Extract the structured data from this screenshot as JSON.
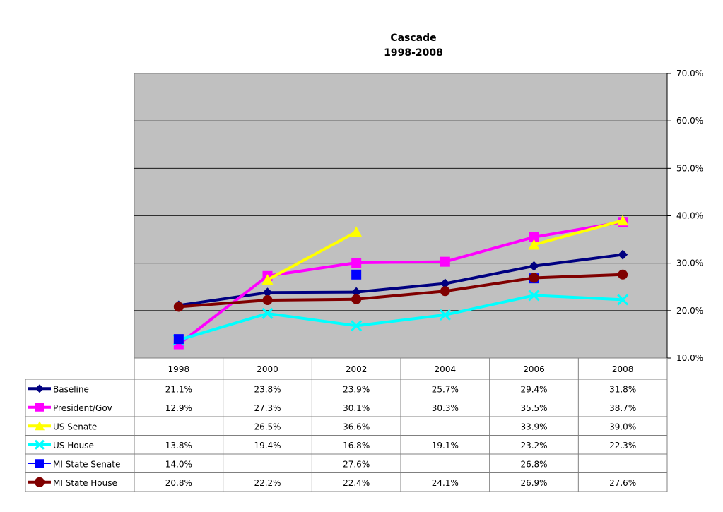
{
  "chart_data": {
    "type": "line",
    "title": "Cascade",
    "subtitle": "1998-2008",
    "categories": [
      "1998",
      "2000",
      "2002",
      "2004",
      "2006",
      "2008"
    ],
    "ylim": [
      10.0,
      70.0
    ],
    "yticks": [
      "10.0%",
      "20.0%",
      "30.0%",
      "40.0%",
      "50.0%",
      "60.0%",
      "70.0%"
    ],
    "ytick_values": [
      10,
      20,
      30,
      40,
      50,
      60,
      70
    ],
    "y_axis_side": "right",
    "grid": true,
    "plot_background": "#c0c0c0",
    "legend": "data-table",
    "series": [
      {
        "name": "Baseline",
        "color": "#000080",
        "marker": "diamond",
        "values": [
          21.1,
          23.8,
          23.9,
          25.7,
          29.4,
          31.8
        ],
        "labels": [
          "21.1%",
          "23.8%",
          "23.9%",
          "25.7%",
          "29.4%",
          "31.8%"
        ]
      },
      {
        "name": "President/Gov",
        "color": "#ff00ff",
        "marker": "square",
        "values": [
          12.9,
          27.3,
          30.1,
          30.3,
          35.5,
          38.7
        ],
        "labels": [
          "12.9%",
          "27.3%",
          "30.1%",
          "30.3%",
          "35.5%",
          "38.7%"
        ]
      },
      {
        "name": "US Senate",
        "color": "#ffff00",
        "marker": "triangle",
        "values": [
          null,
          26.5,
          36.6,
          null,
          33.9,
          39.0
        ],
        "labels": [
          "",
          "26.5%",
          "36.6%",
          "",
          "33.9%",
          "39.0%"
        ]
      },
      {
        "name": "US House",
        "color": "#00ffff",
        "marker": "x",
        "values": [
          13.8,
          19.4,
          16.8,
          19.1,
          23.2,
          22.3
        ],
        "labels": [
          "13.8%",
          "19.4%",
          "16.8%",
          "19.1%",
          "23.2%",
          "22.3%"
        ]
      },
      {
        "name": "MI State Senate",
        "color": "#0000ff",
        "marker": "square",
        "values": [
          14.0,
          null,
          27.6,
          null,
          26.8,
          null
        ],
        "labels": [
          "14.0%",
          "",
          "27.6%",
          "",
          "26.8%",
          ""
        ]
      },
      {
        "name": "MI State House",
        "color": "#800000",
        "marker": "circle",
        "values": [
          20.8,
          22.2,
          22.4,
          24.1,
          26.9,
          27.6
        ],
        "labels": [
          "20.8%",
          "22.2%",
          "22.4%",
          "24.1%",
          "26.9%",
          "27.6%"
        ]
      }
    ]
  }
}
